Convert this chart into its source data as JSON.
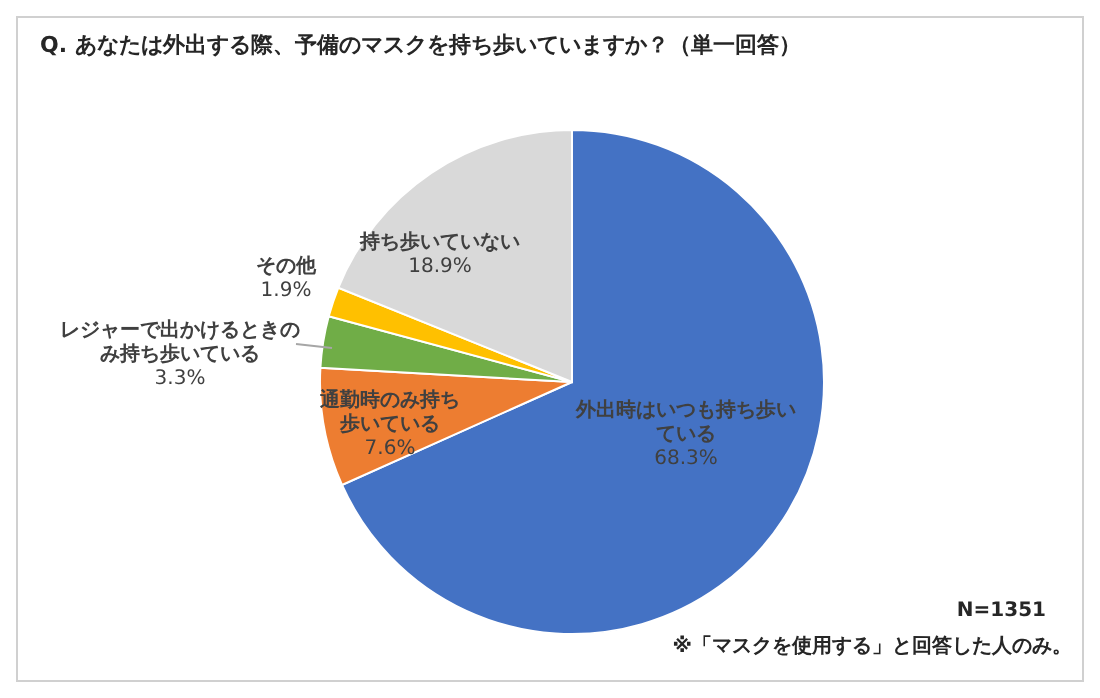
{
  "chart_data": {
    "type": "pie",
    "title": "Q.  あなたは外出する際、予備のマスクを持ち歩いていますか？（単一回答）",
    "categories": [
      "外出時はいつも持ち歩いている",
      "通勤時のみ持ち歩いている",
      "レジャーで出かけるときのみ持ち歩いている",
      "その他",
      "持ち歩いていない"
    ],
    "values": [
      68.3,
      7.6,
      3.3,
      1.9,
      18.9
    ],
    "colors": [
      "#4472c4",
      "#ed7d31",
      "#70ad47",
      "#ffc000",
      "#d9d9d9"
    ],
    "value_labels": [
      "68.3%",
      "7.6%",
      "3.3%",
      "1.9%",
      "18.9%"
    ],
    "annotations": [
      "N=1351",
      "※「マスクを使用する」と回答した人のみ。"
    ]
  }
}
